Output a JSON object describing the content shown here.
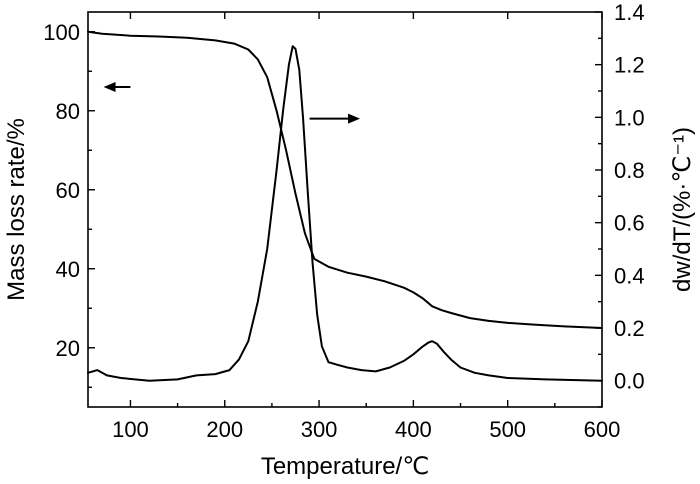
{
  "chart_data": {
    "type": "line",
    "xlabel": "Temperature/℃",
    "ylabel_left": "Mass loss rate/%",
    "ylabel_right": "dw/dT/(%·℃⁻¹)",
    "xlim": [
      55,
      600
    ],
    "ylim_left": [
      5,
      105
    ],
    "ylim_right": [
      -0.1,
      1.4
    ],
    "x_ticks": [
      100,
      200,
      300,
      400,
      500,
      600
    ],
    "y_left_ticks": [
      20,
      40,
      60,
      80,
      100
    ],
    "y_right_ticks": [
      0.0,
      0.2,
      0.4,
      0.6,
      0.8,
      1.0,
      1.2,
      1.4
    ],
    "arrows": [
      {
        "name": "left-axis-arrow",
        "direction": "left",
        "x": [
          100,
          80
        ],
        "y_left": 86
      },
      {
        "name": "right-axis-arrow",
        "direction": "right",
        "x": [
          290,
          335
        ],
        "y_left": 78
      }
    ],
    "series": [
      {
        "axis": "left",
        "x": [
          55,
          70,
          100,
          130,
          160,
          190,
          210,
          225,
          235,
          245,
          255,
          265,
          275,
          285,
          295,
          310,
          330,
          350,
          370,
          390,
          400,
          410,
          420,
          430,
          440,
          460,
          480,
          500,
          530,
          560,
          600
        ],
        "y": [
          100,
          99.5,
          99,
          98.8,
          98.5,
          97.8,
          97,
          95.5,
          93,
          88.5,
          80,
          70,
          59,
          49,
          42.5,
          40.5,
          39,
          38,
          36.8,
          35.2,
          34,
          32.5,
          30.5,
          29.5,
          28.8,
          27.5,
          26.8,
          26.3,
          25.8,
          25.4,
          25
        ]
      },
      {
        "axis": "right",
        "x": [
          55,
          65,
          75,
          90,
          120,
          150,
          170,
          190,
          205,
          215,
          225,
          235,
          245,
          255,
          262,
          268,
          272,
          275,
          279,
          283,
          288,
          293,
          298,
          303,
          310,
          320,
          330,
          345,
          360,
          375,
          390,
          400,
          410,
          416,
          420,
          425,
          432,
          440,
          450,
          465,
          480,
          500,
          540,
          600
        ],
        "y": [
          0.03,
          0.04,
          0.02,
          0.01,
          0.0,
          0.005,
          0.02,
          0.025,
          0.04,
          0.08,
          0.15,
          0.3,
          0.5,
          0.8,
          1.03,
          1.2,
          1.27,
          1.26,
          1.18,
          1.0,
          0.72,
          0.45,
          0.25,
          0.13,
          0.07,
          0.06,
          0.05,
          0.04,
          0.035,
          0.05,
          0.075,
          0.1,
          0.13,
          0.145,
          0.15,
          0.14,
          0.11,
          0.08,
          0.05,
          0.03,
          0.02,
          0.01,
          0.005,
          0.0
        ]
      }
    ]
  }
}
